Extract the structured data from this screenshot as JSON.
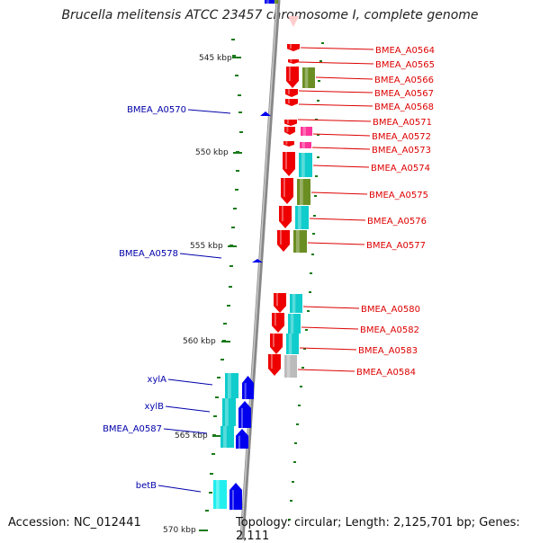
{
  "title": "Brucella melitensis ATCC 23457 chromosome I, complete genome",
  "footer": {
    "accession": "Accession: NC_012441",
    "topology": "Topology: circular; Length: 2,125,701 bp; Genes: 2,111"
  },
  "colors": {
    "axis": "#888888",
    "tick": "#1a7a1a",
    "left_label": "#0000aa",
    "right_label": "#dd0000",
    "red": "#ee0000",
    "cyan": "#11cccc",
    "olive": "#6b8e23",
    "blue": "#0000ee",
    "pink": "#ff3399",
    "gray": "#bbbbbb"
  },
  "scale_labels": [
    "545 kbp",
    "550 kbp",
    "555 kbp",
    "560 kbp",
    "565 kbp",
    "570 kbp"
  ],
  "right_genes": [
    "BMEA_A0564",
    "BMEA_A0565",
    "BMEA_A0566",
    "BMEA_A0567",
    "BMEA_A0568",
    "BMEA_A0571",
    "BMEA_A0572",
    "BMEA_A0573",
    "BMEA_A0574",
    "BMEA_A0575",
    "BMEA_A0576",
    "BMEA_A0577",
    "BMEA_A0580",
    "BMEA_A0582",
    "BMEA_A0583",
    "BMEA_A0584"
  ],
  "left_genes": [
    "BMEA_A0570",
    "BMEA_A0578",
    "xylA",
    "xylB",
    "BMEA_A0587",
    "betB"
  ]
}
